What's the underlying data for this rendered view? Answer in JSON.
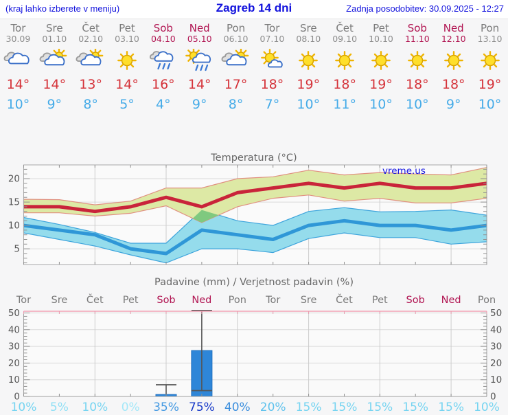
{
  "header": {
    "left_note": "(kraj lahko izberete v meniju)",
    "title": "Zagreb 14 dni",
    "updated": "Zadnja posodobitev: 30.09.2025 - 12:27"
  },
  "watermark": "vreme.us",
  "colors": {
    "weekend": "#b11552",
    "weekday": "#7a7a7a",
    "tmax_text": "#d5333a",
    "tmin_text": "#45abe8",
    "header_blue": "#1212dd"
  },
  "forecast": {
    "days": [
      {
        "name": "Tor",
        "date": "30.09",
        "weekend": false,
        "icon": "cloudy",
        "tmax": 14,
        "tmin": 10
      },
      {
        "name": "Sre",
        "date": "01.10",
        "weekend": false,
        "icon": "partly-cloudy",
        "tmax": 14,
        "tmin": 9
      },
      {
        "name": "Čet",
        "date": "02.10",
        "weekend": false,
        "icon": "partly-cloudy",
        "tmax": 13,
        "tmin": 8
      },
      {
        "name": "Pet",
        "date": "03.10",
        "weekend": false,
        "icon": "sunny",
        "tmax": 14,
        "tmin": 5
      },
      {
        "name": "Sob",
        "date": "04.10",
        "weekend": true,
        "icon": "rain",
        "tmax": 16,
        "tmin": 4
      },
      {
        "name": "Ned",
        "date": "05.10",
        "weekend": true,
        "icon": "sun-rain",
        "tmax": 14,
        "tmin": 9
      },
      {
        "name": "Pon",
        "date": "06.10",
        "weekend": false,
        "icon": "partly-cloudy",
        "tmax": 17,
        "tmin": 8
      },
      {
        "name": "Tor",
        "date": "07.10",
        "weekend": false,
        "icon": "mostly-sunny",
        "tmax": 18,
        "tmin": 7
      },
      {
        "name": "Sre",
        "date": "08.10",
        "weekend": false,
        "icon": "sunny",
        "tmax": 19,
        "tmin": 10
      },
      {
        "name": "Čet",
        "date": "09.10",
        "weekend": false,
        "icon": "sunny",
        "tmax": 18,
        "tmin": 11
      },
      {
        "name": "Pet",
        "date": "10.10",
        "weekend": false,
        "icon": "sunny",
        "tmax": 19,
        "tmin": 10
      },
      {
        "name": "Sob",
        "date": "11.10",
        "weekend": true,
        "icon": "sunny",
        "tmax": 18,
        "tmin": 10
      },
      {
        "name": "Ned",
        "date": "12.10",
        "weekend": true,
        "icon": "sunny",
        "tmax": 18,
        "tmin": 9
      },
      {
        "name": "Pon",
        "date": "13.10",
        "weekend": false,
        "icon": "sunny",
        "tmax": 19,
        "tmin": 10
      }
    ]
  },
  "chart_data": [
    {
      "type": "line",
      "title": "Temperatura (°C)",
      "categories": [
        "Tor",
        "Sre",
        "Čet",
        "Pet",
        "Sob",
        "Ned",
        "Pon",
        "Tor",
        "Sre",
        "Čet",
        "Pet",
        "Sob",
        "Ned",
        "Pon"
      ],
      "ylim": [
        1.5,
        23
      ],
      "yticks": [
        5,
        10,
        15,
        20
      ],
      "grid": true,
      "legend": "none",
      "series": [
        {
          "name": "temp_max",
          "color": "#c9243a",
          "values": [
            14,
            14,
            13,
            14,
            16,
            14,
            17,
            18,
            19,
            18,
            19,
            18,
            18,
            19
          ]
        },
        {
          "name": "temp_min",
          "color": "#2f97d7",
          "values": [
            10,
            9,
            8,
            5,
            4,
            9,
            8,
            7,
            10,
            11,
            10,
            10,
            9,
            10
          ]
        },
        {
          "name": "temp_max_range_upper",
          "color": "#dde9a5",
          "values": [
            15.6,
            15.5,
            14.4,
            15.2,
            18,
            18,
            20,
            20.4,
            21.8,
            20.8,
            21.3,
            21,
            20.8,
            22.4
          ]
        },
        {
          "name": "temp_max_range_lower",
          "color": "#dde9a5",
          "values": [
            12.7,
            12.7,
            12,
            12.6,
            14.2,
            10.6,
            14,
            15.8,
            16.5,
            15.2,
            15.8,
            14.8,
            14.8,
            15.8
          ]
        },
        {
          "name": "temp_min_range_upper",
          "color": "#95dcec",
          "values": [
            11.7,
            10.2,
            8.5,
            6.2,
            6.2,
            13.3,
            11,
            10,
            13,
            13.8,
            12.9,
            13,
            13.3,
            12.2
          ]
        },
        {
          "name": "temp_min_range_lower",
          "color": "#95dcec",
          "values": [
            8.4,
            7,
            5.6,
            3.7,
            2,
            5,
            5,
            4.2,
            7.2,
            8.4,
            7.4,
            7.4,
            6,
            6.5
          ]
        }
      ]
    },
    {
      "type": "bar",
      "title": "Padavine (mm) / Verjetnost padavin (%)",
      "categories": [
        "Tor",
        "Sre",
        "Čet",
        "Pet",
        "Sob",
        "Ned",
        "Pon",
        "Tor",
        "Sre",
        "Čet",
        "Pet",
        "Sob",
        "Ned",
        "Pon"
      ],
      "weekend_flags": [
        false,
        false,
        false,
        false,
        true,
        true,
        false,
        false,
        false,
        false,
        false,
        true,
        true,
        false
      ],
      "values": [
        0,
        0,
        0,
        0,
        1.2,
        27.5,
        0,
        0,
        0,
        0,
        0,
        0,
        0,
        0
      ],
      "whiskers": [
        {
          "index": 4,
          "low": 1.2,
          "high": 7,
          "cap_low": false,
          "cap_high": true
        },
        {
          "index": 5,
          "low": 3.5,
          "high": 51.5,
          "cap_low": true,
          "cap_high": true
        }
      ],
      "probabilities": [
        {
          "label": "10%",
          "color": "#76d4f1"
        },
        {
          "label": "5%",
          "color": "#8fdff5"
        },
        {
          "label": "10%",
          "color": "#76d4f1"
        },
        {
          "label": "0%",
          "color": "#a3e7f8"
        },
        {
          "label": "35%",
          "color": "#4499e2"
        },
        {
          "label": "75%",
          "color": "#1739c8"
        },
        {
          "label": "40%",
          "color": "#3b8edd"
        },
        {
          "label": "20%",
          "color": "#5fc2ed"
        },
        {
          "label": "15%",
          "color": "#76d4f1"
        },
        {
          "label": "15%",
          "color": "#76d4f1"
        },
        {
          "label": "15%",
          "color": "#76d4f1"
        },
        {
          "label": "15%",
          "color": "#76d4f1"
        },
        {
          "label": "15%",
          "color": "#76d4f1"
        },
        {
          "label": "10%",
          "color": "#76d4f1"
        }
      ],
      "ylim": [
        0,
        51
      ],
      "yticks": [
        0,
        10,
        20,
        30,
        40,
        50
      ],
      "bar_color": "#2e86d8",
      "grid": true
    }
  ]
}
